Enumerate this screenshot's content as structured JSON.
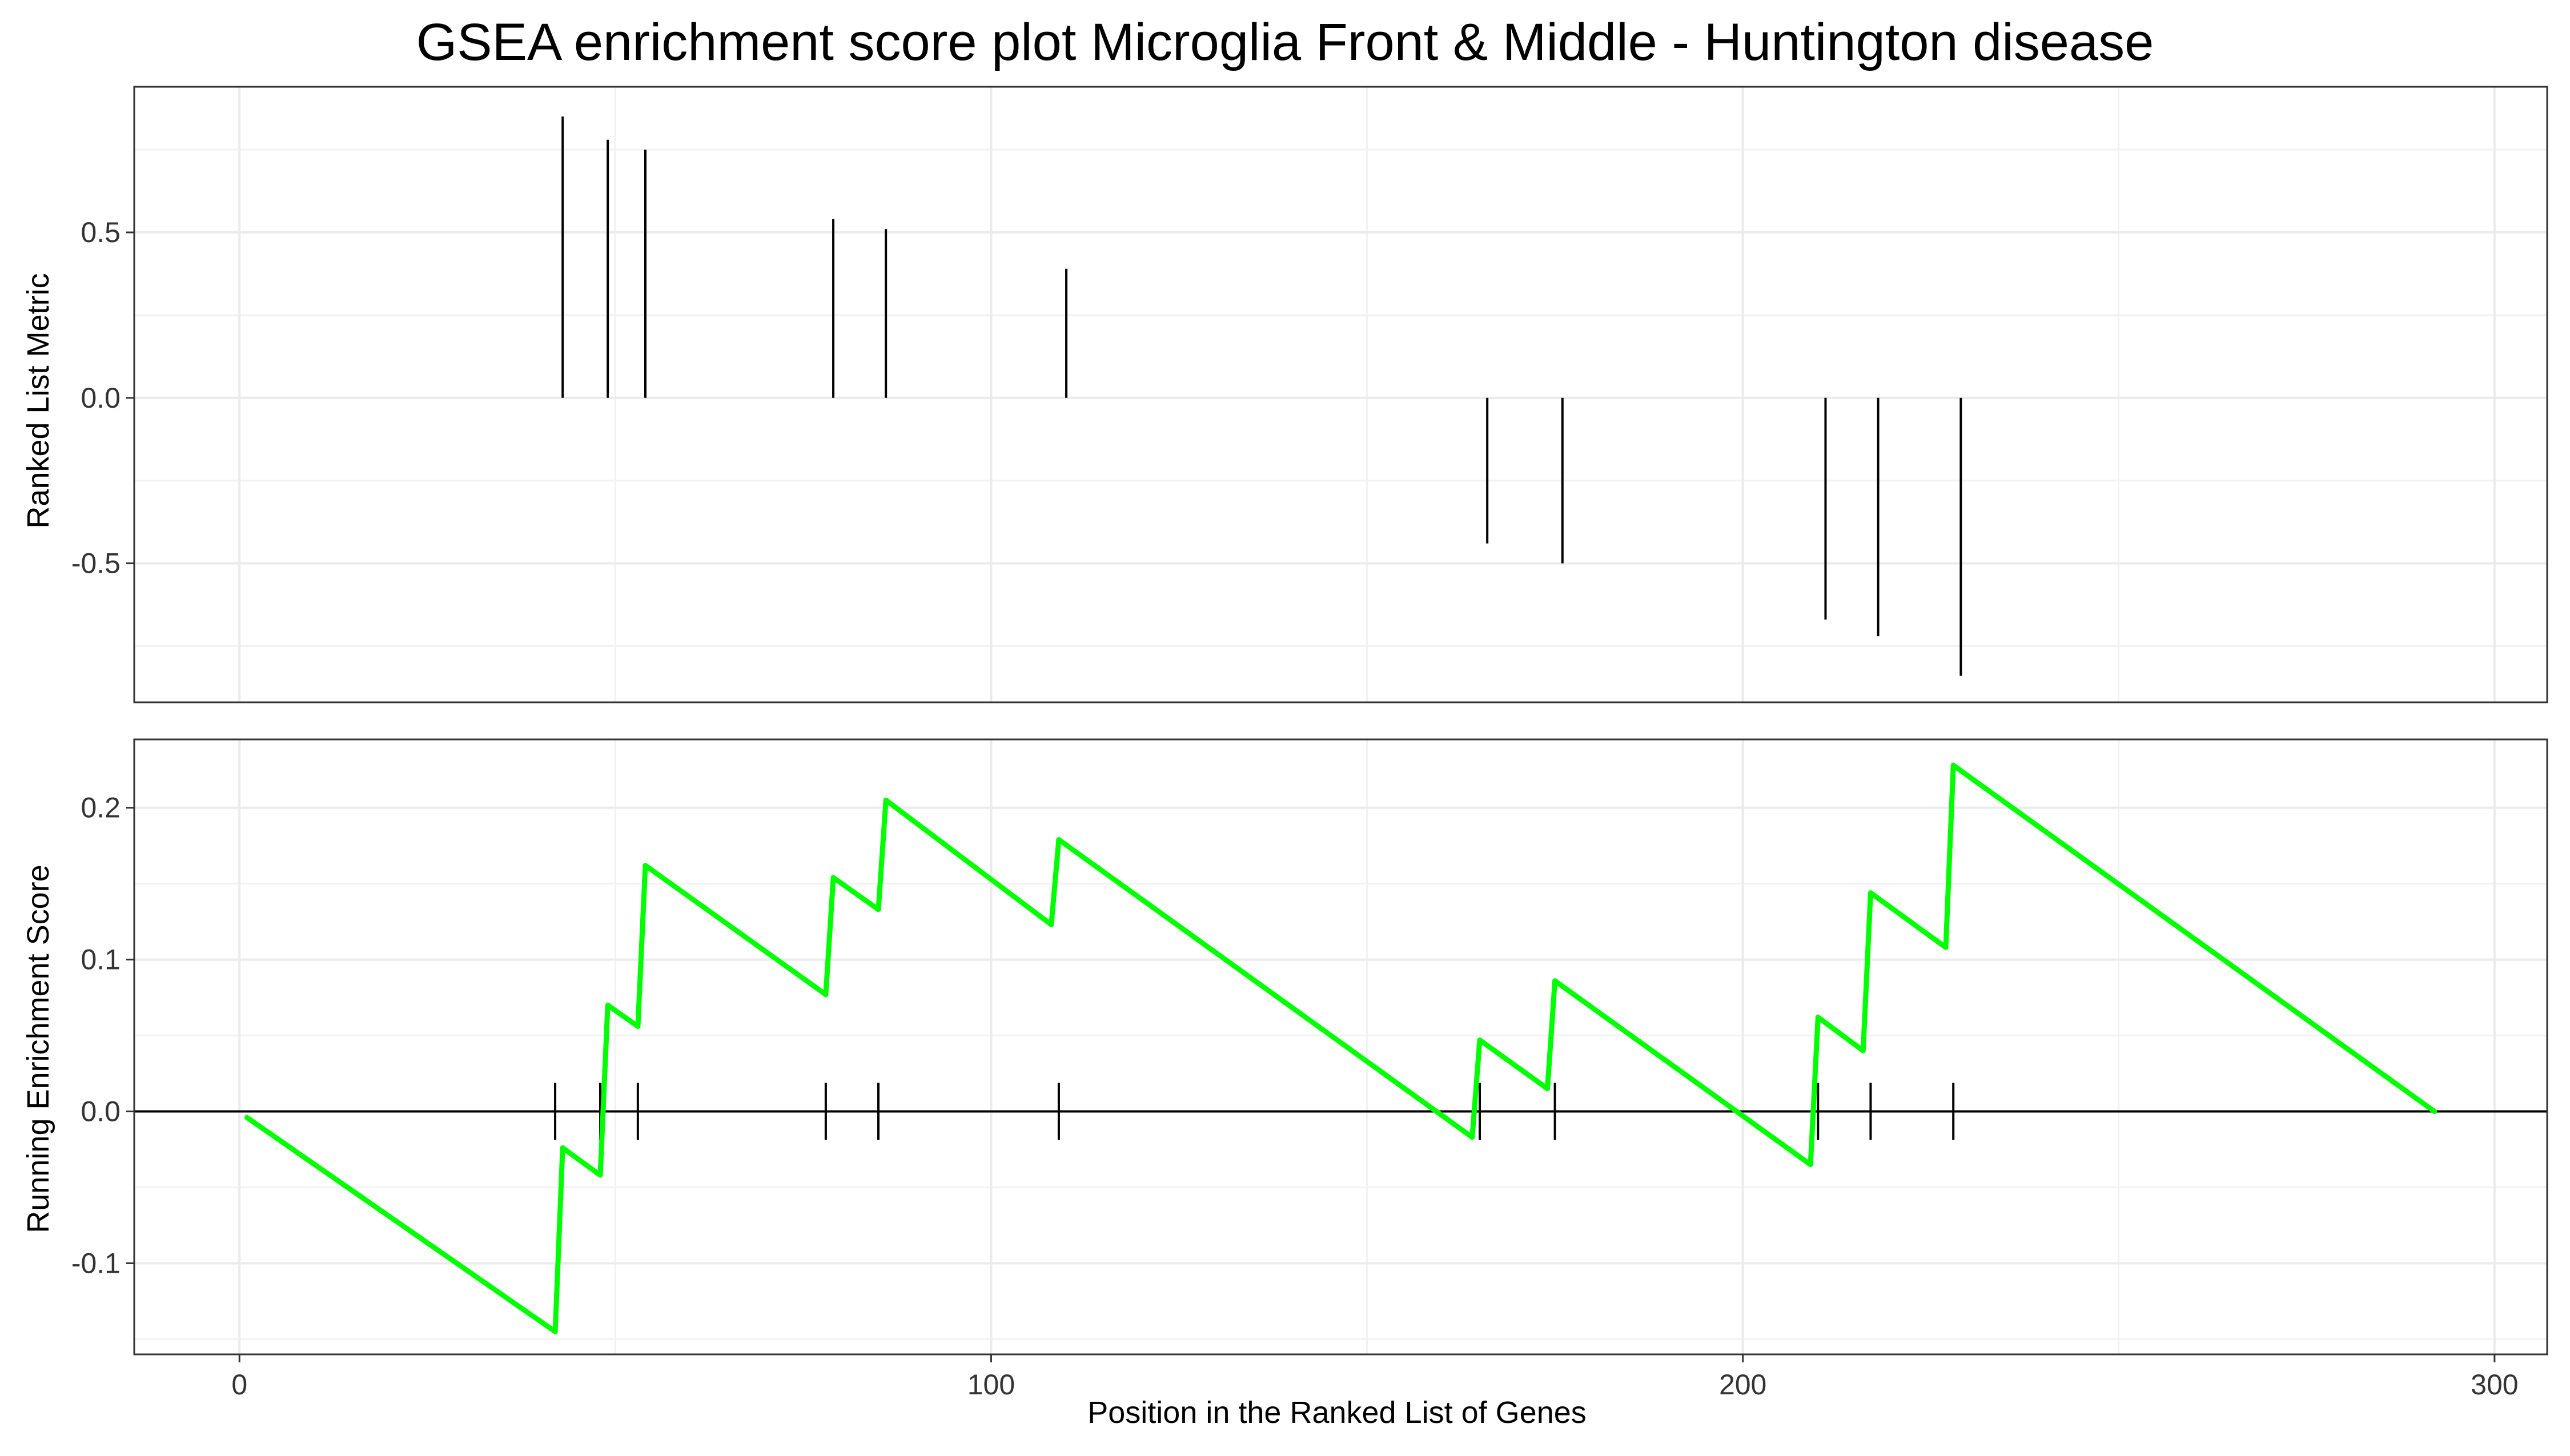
{
  "title": "GSEA enrichment score plot Microglia Front & Middle - Huntington disease",
  "chart_data": [
    {
      "type": "bar",
      "panel": "top",
      "title": "",
      "xlabel": "",
      "ylabel": "Ranked List Metric",
      "ylim": [
        -0.92,
        0.94
      ],
      "yticks": [
        -0.5,
        0.0,
        0.5
      ],
      "ytick_labels": [
        "-0.5",
        "0.0",
        "0.5"
      ],
      "grid": true,
      "x": [
        43,
        49,
        54,
        79,
        86,
        110,
        166,
        176,
        211,
        218,
        229
      ],
      "values": [
        0.85,
        0.78,
        0.75,
        0.54,
        0.51,
        0.39,
        -0.44,
        -0.5,
        -0.67,
        -0.72,
        -0.84
      ]
    },
    {
      "type": "line",
      "panel": "bottom",
      "title": "",
      "xlabel": "Position in the Ranked List of Genes",
      "ylabel": "Running Enrichment Score",
      "xlim": [
        -14,
        307
      ],
      "xticks": [
        0,
        100,
        200,
        300
      ],
      "xtick_labels": [
        "0",
        "100",
        "200",
        "300"
      ],
      "ylim": [
        -0.16,
        0.245
      ],
      "yticks": [
        -0.1,
        0.0,
        0.1,
        0.2
      ],
      "ytick_labels": [
        "-0.1",
        "0.0",
        "0.1",
        "0.2"
      ],
      "grid": true,
      "line_color": "#00ff00",
      "hit_positions": [
        42,
        48,
        53,
        78,
        85,
        109,
        165,
        175,
        210,
        217,
        228
      ],
      "series": [
        {
          "x": [
            1,
            42,
            43,
            48,
            49,
            53,
            54,
            78,
            79,
            85,
            86,
            108,
            109,
            164,
            165,
            174,
            175,
            209,
            210,
            216,
            217,
            227,
            228,
            292
          ],
          "values": [
            -0.004,
            -0.145,
            -0.024,
            -0.042,
            0.07,
            0.056,
            0.162,
            0.077,
            0.154,
            0.133,
            0.205,
            0.123,
            0.179,
            -0.017,
            0.047,
            0.015,
            0.086,
            -0.035,
            0.062,
            0.04,
            0.144,
            0.108,
            0.228,
            0.0
          ]
        }
      ]
    }
  ]
}
